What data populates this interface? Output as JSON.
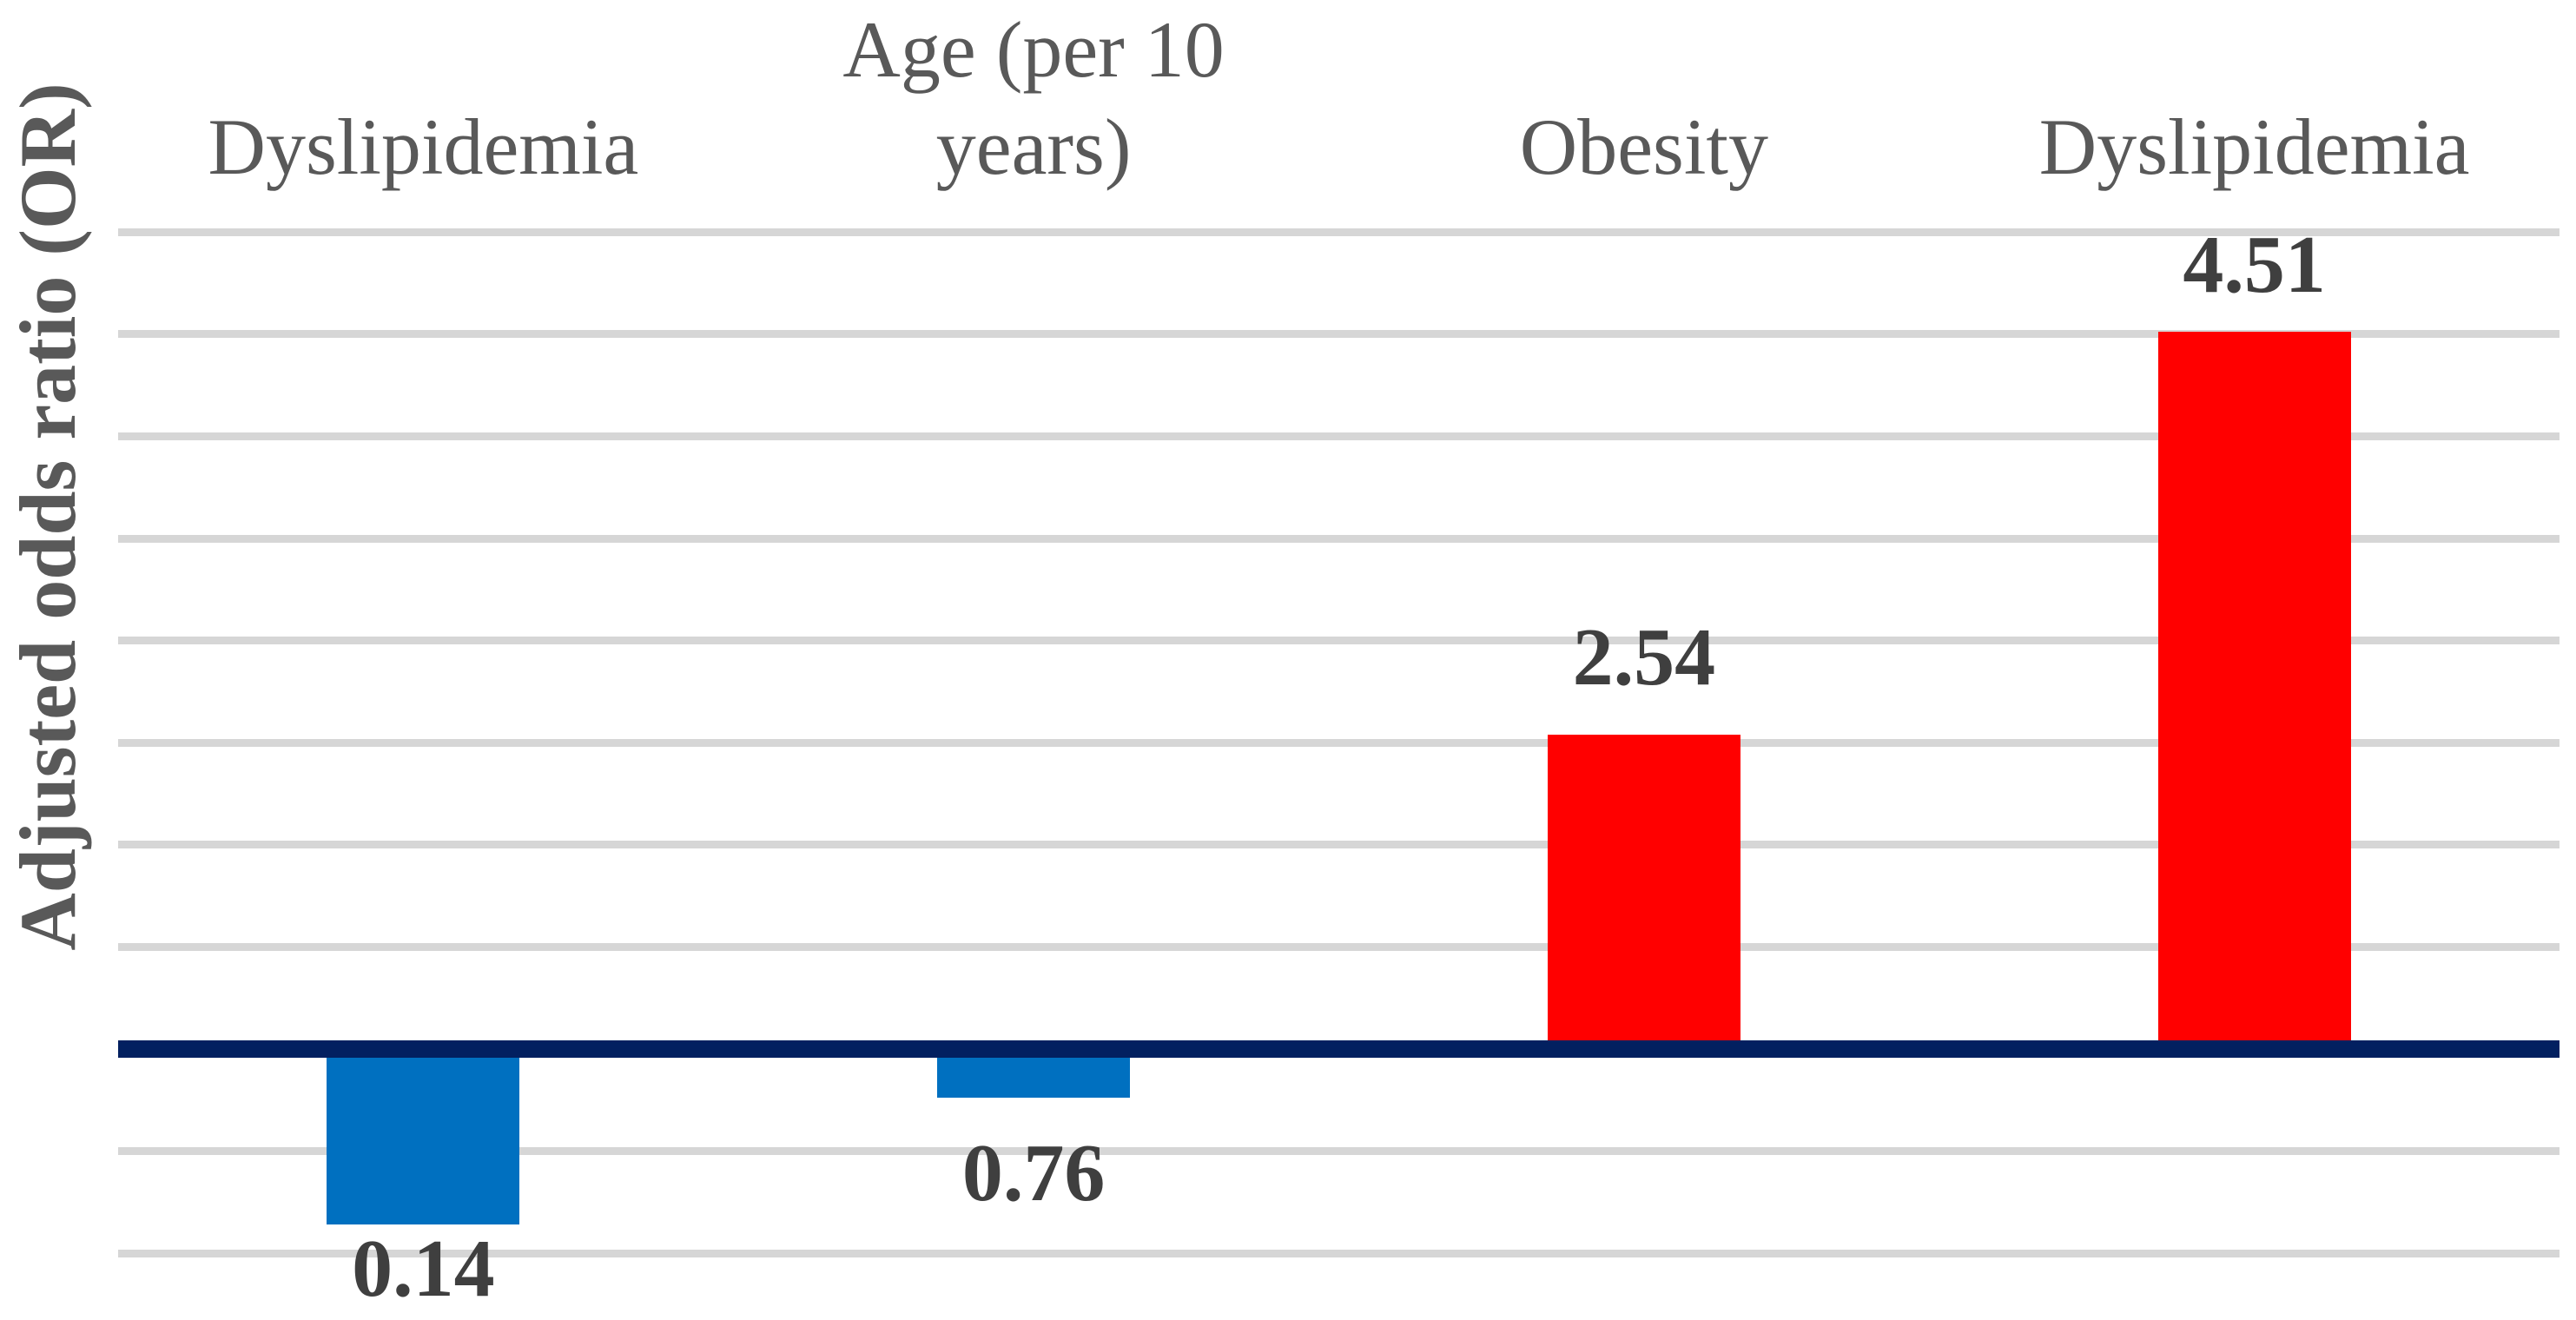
{
  "chart_data": {
    "type": "bar",
    "title": "",
    "ylabel": "Adjusted odds ratio (OR)",
    "xlabel": "",
    "categories": [
      "Dyslipidemia",
      "Age (per 10\nyears)",
      "Obesity",
      "Dyslipidemia"
    ],
    "values": [
      0.14,
      0.76,
      2.54,
      4.51
    ],
    "value_labels": [
      "0.14",
      "0.76",
      "2.54",
      "4.51"
    ],
    "baseline_value": 1.0,
    "ylim": [
      0,
      5
    ],
    "gridline_step": 0.5,
    "grid": true,
    "legend_position": "none",
    "axis_tick_labels_visible": false,
    "bar_colors": [
      "#0070C0",
      "#0070C0",
      "#FF0000",
      "#FF0000"
    ],
    "colors": {
      "negative_bar_blue": "#0070C0",
      "positive_bar_red": "#FF0000",
      "baseline_line_navy": "#022060",
      "gridline_gray": "#D6D6D6",
      "category_text_gray": "#595959",
      "value_text_dark": "#3F3F3F"
    }
  }
}
